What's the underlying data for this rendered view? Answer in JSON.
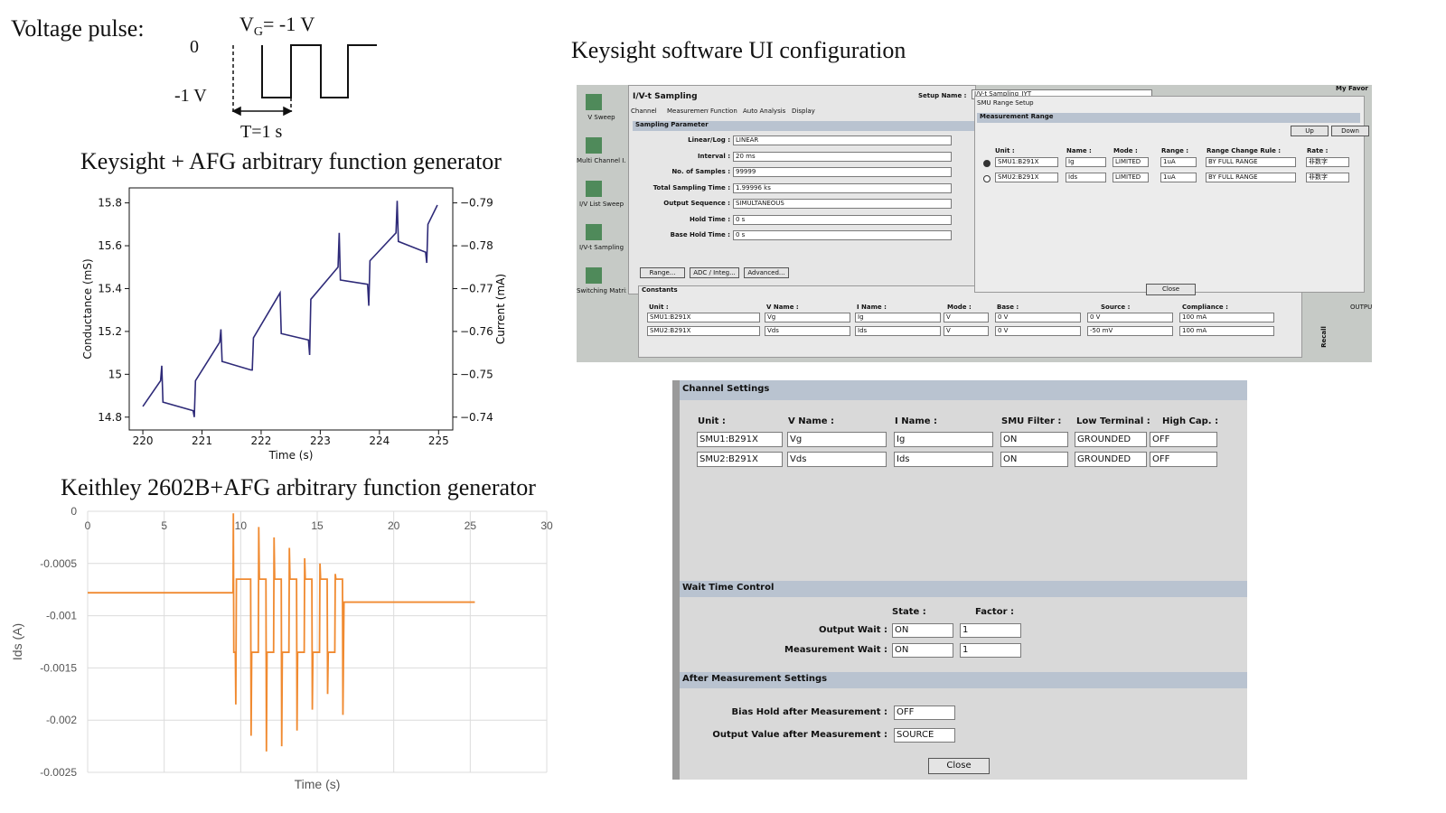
{
  "pulse": {
    "title": "Voltage pulse:",
    "gate_label": "V",
    "gate_sub": "G",
    "gate_value": "= -1 V",
    "level_high": "0",
    "level_low": "-1 V",
    "period": "T=1 s"
  },
  "headings": {
    "ui": "Keysight software UI configuration",
    "chart1": "Keysight + AFG arbitrary function generator",
    "chart2": "Keithley 2602B+AFG arbitrary function generator"
  },
  "chart_data": [
    {
      "type": "line",
      "color": "#2e2a78",
      "x": [
        220.0,
        220.3,
        220.32,
        220.34,
        220.85,
        220.87,
        220.89,
        221.3,
        221.32,
        221.34,
        221.83,
        221.85,
        221.87,
        222.32,
        222.34,
        222.8,
        222.82,
        222.84,
        223.3,
        223.32,
        223.34,
        223.8,
        223.82,
        223.84,
        224.28,
        224.3,
        224.32,
        224.78,
        224.8,
        224.82,
        224.98
      ],
      "values": [
        14.85,
        14.97,
        15.04,
        14.87,
        14.83,
        14.8,
        14.97,
        15.15,
        15.21,
        15.06,
        15.02,
        15.02,
        15.17,
        15.38,
        15.19,
        15.16,
        15.09,
        15.35,
        15.5,
        15.66,
        15.44,
        15.42,
        15.32,
        15.53,
        15.66,
        15.81,
        15.62,
        15.57,
        15.52,
        15.7,
        15.79
      ],
      "xlim": [
        219.77,
        225.24
      ],
      "xticks": [
        220,
        221,
        222,
        223,
        224,
        225
      ],
      "ylim": [
        14.74,
        15.87
      ],
      "yticks": [
        14.8,
        15.0,
        15.2,
        15.4,
        15.6,
        15.8
      ],
      "y2lim": [
        -0.737,
        -0.7935
      ],
      "y2ticks": [
        {
          "value": -0.79,
          "label": "−0.79"
        },
        {
          "value": -0.78,
          "label": "−0.78"
        },
        {
          "value": -0.77,
          "label": "−0.77"
        },
        {
          "value": -0.76,
          "label": "−0.76"
        },
        {
          "value": -0.75,
          "label": "−0.75"
        },
        {
          "value": -0.74,
          "label": "−0.74"
        }
      ],
      "xlabel": "Time (s)",
      "ylabel": "Conductance (mS)",
      "y2label": "Current (mA)"
    },
    {
      "type": "line",
      "color": "#f08a30",
      "grid": true,
      "x": [
        0,
        9.5,
        9.52,
        9.55,
        9.65,
        9.68,
        9.72,
        10.65,
        10.68,
        10.72,
        11.15,
        11.18,
        11.22,
        11.65,
        11.68,
        11.72,
        12.15,
        12.18,
        12.22,
        12.65,
        12.68,
        12.72,
        13.15,
        13.18,
        13.22,
        13.65,
        13.68,
        13.72,
        14.15,
        14.18,
        14.22,
        14.65,
        14.68,
        14.72,
        15.15,
        15.18,
        15.22,
        15.65,
        15.68,
        15.72,
        16.15,
        16.18,
        16.22,
        16.65,
        16.68,
        16.75,
        25.3
      ],
      "values": [
        -0.00078,
        -0.00078,
        -2e-05,
        -0.00135,
        -0.00135,
        -0.00185,
        -0.00065,
        -0.00065,
        -0.00215,
        -0.00135,
        -0.00135,
        -0.00015,
        -0.00065,
        -0.00065,
        -0.0023,
        -0.00135,
        -0.00135,
        -0.00025,
        -0.00065,
        -0.00065,
        -0.00225,
        -0.00135,
        -0.00135,
        -0.00035,
        -0.00065,
        -0.00065,
        -0.0021,
        -0.00135,
        -0.00135,
        -0.00045,
        -0.00065,
        -0.00065,
        -0.0019,
        -0.00135,
        -0.00135,
        -0.0005,
        -0.00065,
        -0.00065,
        -0.00175,
        -0.00135,
        -0.00135,
        -0.0006,
        -0.00065,
        -0.00065,
        -0.00195,
        -0.00087,
        -0.00087
      ],
      "xlim": [
        0,
        30
      ],
      "xticks": [
        0,
        5,
        10,
        15,
        20,
        25,
        30
      ],
      "ylim": [
        -0.0025,
        0
      ],
      "yticks": [
        0,
        -0.0005,
        -0.001,
        -0.0015,
        -0.002,
        -0.0025
      ],
      "xlabel": "Time (s)",
      "ylabel": "Ids (A)"
    }
  ],
  "ui1": {
    "sidebar": [
      "V Sweep",
      "Multi Channel I...",
      "I/V List Sweep",
      "I/V-t Sampling",
      "Switching Matrix ..."
    ],
    "title": "I/V-t Sampling",
    "tabs": [
      "Channel",
      "Measurement",
      "Function",
      "Auto Analysis",
      "Display"
    ],
    "setup_label": "Setup Name :",
    "setup_name": "I/V-t Sampling_JYT",
    "favorites": "My Favor",
    "sampling_header": "Sampling Parameter",
    "sampling": [
      {
        "label": "Linear/Log :",
        "value": "LINEAR"
      },
      {
        "label": "Interval :",
        "value": "20 ms"
      },
      {
        "label": "No. of Samples :",
        "value": "99999"
      },
      {
        "label": "Total Sampling Time :",
        "value": "1.99996 ks"
      },
      {
        "label": "Output Sequence :",
        "value": "SIMULTANEOUS"
      },
      {
        "label": "Hold Time :",
        "value": "0 s"
      },
      {
        "label": "Base Hold Time :",
        "value": "0 s"
      }
    ],
    "buttons": [
      "Range...",
      "ADC / Integ...",
      "Advanced..."
    ],
    "constants_header": "Constants",
    "constants_columns": [
      "Unit :",
      "V Name :",
      "I Name :",
      "Mode :",
      "Base :",
      "Source :",
      "Compliance :"
    ],
    "constants_rows": [
      [
        "SMU1:B291X",
        "Vg",
        "Ig",
        "V",
        "0 V",
        "0 V",
        "100 mA"
      ],
      [
        "SMU2:B291X",
        "Vds",
        "Ids",
        "V",
        "0 V",
        "-50 mV",
        "100 mA"
      ]
    ],
    "dialog": {
      "title": "SMU Range Setup",
      "header": "Measurement Range",
      "buttons": [
        "Up",
        "Down"
      ],
      "columns": [
        "Unit :",
        "Name :",
        "Mode :",
        "Range :",
        "Range Change Rule :",
        "Rate :"
      ],
      "rows": [
        [
          "SMU1:B291X",
          "Ig",
          "LIMITED",
          "1uA",
          "BY FULL RANGE",
          "非数字"
        ],
        [
          "SMU2:B291X",
          "Ids",
          "LIMITED",
          "1uA",
          "BY FULL RANGE",
          "非数字"
        ]
      ],
      "close": "Close"
    },
    "recall": "Recall",
    "output": "OUTPU"
  },
  "ui2": {
    "header": "Channel Settings",
    "columns": [
      "Unit :",
      "V Name :",
      "I Name :",
      "SMU Filter :",
      "Low Terminal :",
      "High Cap. :"
    ],
    "rows": [
      [
        "SMU1:B291X",
        "Vg",
        "Ig",
        "ON",
        "GROUNDED",
        "OFF"
      ],
      [
        "SMU2:B291X",
        "Vds",
        "Ids",
        "ON",
        "GROUNDED",
        "OFF"
      ]
    ],
    "wait_header": "Wait Time Control",
    "wait_columns": [
      "State :",
      "Factor :"
    ],
    "wait_rows": [
      {
        "label": "Output Wait :",
        "state": "ON",
        "factor": "1"
      },
      {
        "label": "Measurement Wait :",
        "state": "ON",
        "factor": "1"
      }
    ],
    "after_header": "After Measurement Settings",
    "after_rows": [
      {
        "label": "Bias Hold after Measurement :",
        "value": "OFF"
      },
      {
        "label": "Output Value after Measurement :",
        "value": "SOURCE"
      }
    ],
    "close": "Close"
  }
}
